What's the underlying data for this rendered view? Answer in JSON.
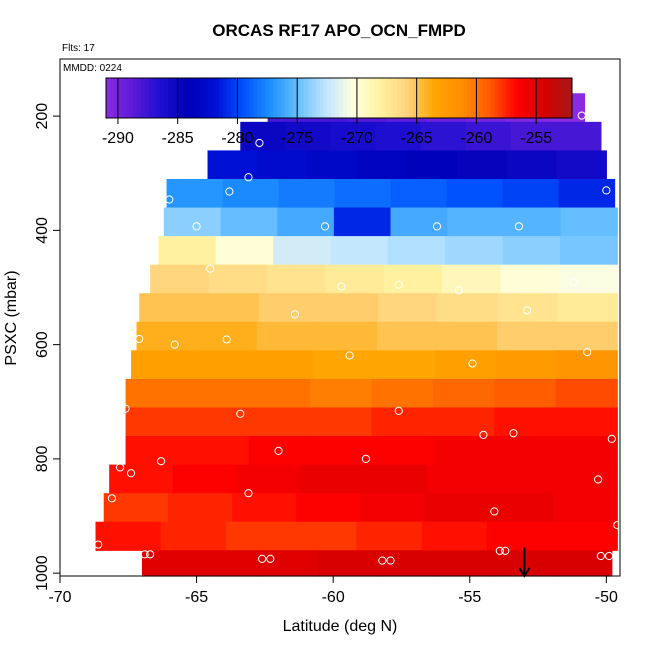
{
  "chart_data": {
    "type": "heatmap",
    "title": "ORCAS RF17 APO_OCN_FMPD",
    "annotation_flights": "Flts: 17",
    "annotation_date": "MMDD: 0224",
    "xlabel": "Latitude (deg N)",
    "ylabel": "PSXC (mbar)",
    "xlim": [
      -70,
      -49.5
    ],
    "ylim": [
      1005,
      100
    ],
    "y_reversed": true,
    "grid": false,
    "x_ticks": [
      "-70",
      "-65",
      "-60",
      "-55",
      "-50"
    ],
    "y_ticks": [
      "200",
      "400",
      "600",
      "800",
      "1000"
    ],
    "colorbar": {
      "location": "top",
      "range": [
        -291,
        -252
      ],
      "tick_labels": [
        "-290",
        "-285",
        "-280",
        "-275",
        "-270",
        "-265",
        "-260",
        "-255"
      ],
      "colors": [
        "#8a2be2",
        "#5a1ad8",
        "#1c0fd0",
        "#0000b8",
        "#0010d6",
        "#0050ff",
        "#1e90ff",
        "#66bfff",
        "#bfe5ff",
        "#ffffe0",
        "#fff2a0",
        "#ffd27a",
        "#ffa500",
        "#ff8c00",
        "#ff5a00",
        "#ff0000",
        "#d40000",
        "#a81818"
      ]
    },
    "rows": [
      {
        "p": 185,
        "x0": -62.4,
        "x1": -50.8,
        "values": [
          -288,
          -288,
          -288.5,
          -289,
          -289.5,
          -290,
          -290.5,
          -291
        ]
      },
      {
        "p": 235,
        "x0": -63.4,
        "x1": -50.2,
        "values": [
          -285,
          -285.5,
          -286,
          -286.5,
          -287,
          -287.5,
          -288,
          -288
        ]
      },
      {
        "p": 285,
        "x0": -64.6,
        "x1": -50.0,
        "values": [
          -282,
          -282.5,
          -283,
          -283.5,
          -284,
          -284.5,
          -285,
          -285.5
        ]
      },
      {
        "p": 335,
        "x0": -66.1,
        "x1": -49.7,
        "values": [
          -277,
          -277.5,
          -278,
          -278.5,
          -279,
          -279.5,
          -280,
          -281
        ]
      },
      {
        "p": 385,
        "x0": -66.2,
        "x1": -49.6,
        "values": [
          -274,
          -275,
          -276,
          -281,
          -276,
          -275.5,
          -275.5,
          -275
        ]
      },
      {
        "p": 435,
        "x0": -66.4,
        "x1": -49.6,
        "values": [
          -268,
          -270,
          -272,
          -272.5,
          -273,
          -273.5,
          -274,
          -274.5
        ]
      },
      {
        "p": 485,
        "x0": -66.7,
        "x1": -49.6,
        "values": [
          -266,
          -266.5,
          -267,
          -267.5,
          -268,
          -269,
          -270,
          -270.5
        ]
      },
      {
        "p": 535,
        "x0": -67.1,
        "x1": -49.6,
        "values": [
          -265,
          -265,
          -265.5,
          -265.5,
          -266,
          -266.5,
          -267,
          -267.5
        ]
      },
      {
        "p": 585,
        "x0": -67.2,
        "x1": -49.6,
        "values": [
          -264,
          -264,
          -264.5,
          -264.5,
          -265,
          -265,
          -265.5,
          -265.5
        ]
      },
      {
        "p": 635,
        "x0": -67.4,
        "x1": -49.6,
        "values": [
          -263,
          -263,
          -263,
          -263.5,
          -263.5,
          -263,
          -262.5,
          -262
        ]
      },
      {
        "p": 685,
        "x0": -67.6,
        "x1": -49.6,
        "values": [
          -260,
          -260,
          -260,
          -260.5,
          -260,
          -259.5,
          -259,
          -258.5
        ]
      },
      {
        "p": 735,
        "x0": -67.6,
        "x1": -49.6,
        "values": [
          -258,
          -258,
          -258,
          -258,
          -257.5,
          -257.5,
          -257,
          -257
        ]
      },
      {
        "p": 785,
        "x0": -67.6,
        "x1": -49.6,
        "values": [
          -257,
          -257,
          -256.5,
          -256.5,
          -256.5,
          -256,
          -256,
          -256
        ]
      },
      {
        "p": 835,
        "x0": -68.2,
        "x1": -49.6,
        "values": [
          -257,
          -256.5,
          -256,
          -255.5,
          -255.5,
          -256,
          -256,
          -256
        ]
      },
      {
        "p": 885,
        "x0": -68.4,
        "x1": -49.6,
        "values": [
          -258,
          -257.5,
          -257,
          -256.5,
          -256,
          -255.5,
          -255.5,
          -256
        ]
      },
      {
        "p": 935,
        "x0": -68.7,
        "x1": -49.6,
        "values": [
          -257,
          -257.5,
          -258,
          -258,
          -257.5,
          -257,
          -256.5,
          -256.5
        ]
      },
      {
        "p": 985,
        "x0": -67.0,
        "x1": -49.8,
        "values": [
          -255,
          -255,
          -255,
          -254.5,
          -254.5,
          -254.5,
          -254.5,
          -254.5
        ]
      }
    ],
    "points": [
      {
        "lat": -62.5,
        "p": 190
      },
      {
        "lat": -58.9,
        "p": 182
      },
      {
        "lat": -55.5,
        "p": 182
      },
      {
        "lat": -50.9,
        "p": 199
      },
      {
        "lat": -62.7,
        "p": 247
      },
      {
        "lat": -63.1,
        "p": 307
      },
      {
        "lat": -50.0,
        "p": 330
      },
      {
        "lat": -63.8,
        "p": 332
      },
      {
        "lat": -66.0,
        "p": 346
      },
      {
        "lat": -65.0,
        "p": 393
      },
      {
        "lat": -60.3,
        "p": 393
      },
      {
        "lat": -56.2,
        "p": 393
      },
      {
        "lat": -53.2,
        "p": 393
      },
      {
        "lat": -64.5,
        "p": 467
      },
      {
        "lat": -59.7,
        "p": 498
      },
      {
        "lat": -57.6,
        "p": 495
      },
      {
        "lat": -51.2,
        "p": 490
      },
      {
        "lat": -55.4,
        "p": 505
      },
      {
        "lat": -52.9,
        "p": 540
      },
      {
        "lat": -61.4,
        "p": 547
      },
      {
        "lat": -67.1,
        "p": 590
      },
      {
        "lat": -63.9,
        "p": 591
      },
      {
        "lat": -65.8,
        "p": 600
      },
      {
        "lat": -59.4,
        "p": 619
      },
      {
        "lat": -50.7,
        "p": 613
      },
      {
        "lat": -54.9,
        "p": 633
      },
      {
        "lat": -67.6,
        "p": 712
      },
      {
        "lat": -63.4,
        "p": 721
      },
      {
        "lat": -57.6,
        "p": 716
      },
      {
        "lat": -54.5,
        "p": 758
      },
      {
        "lat": -53.4,
        "p": 755
      },
      {
        "lat": -49.8,
        "p": 765
      },
      {
        "lat": -62.0,
        "p": 786
      },
      {
        "lat": -66.3,
        "p": 804
      },
      {
        "lat": -58.8,
        "p": 800
      },
      {
        "lat": -67.8,
        "p": 815
      },
      {
        "lat": -67.4,
        "p": 825
      },
      {
        "lat": -50.3,
        "p": 836
      },
      {
        "lat": -63.1,
        "p": 860
      },
      {
        "lat": -68.1,
        "p": 869
      },
      {
        "lat": -54.1,
        "p": 892
      },
      {
        "lat": -49.6,
        "p": 916
      },
      {
        "lat": -68.6,
        "p": 950
      },
      {
        "lat": -53.9,
        "p": 961
      },
      {
        "lat": -53.7,
        "p": 961
      },
      {
        "lat": -66.9,
        "p": 967
      },
      {
        "lat": -66.7,
        "p": 967
      },
      {
        "lat": -62.6,
        "p": 975
      },
      {
        "lat": -62.3,
        "p": 975
      },
      {
        "lat": -58.2,
        "p": 978
      },
      {
        "lat": -57.9,
        "p": 978
      },
      {
        "lat": -50.2,
        "p": 970
      },
      {
        "lat": -49.9,
        "p": 970
      }
    ],
    "arrow": {
      "lat": -53.0,
      "p_from": 955,
      "p_to": 1005
    }
  }
}
